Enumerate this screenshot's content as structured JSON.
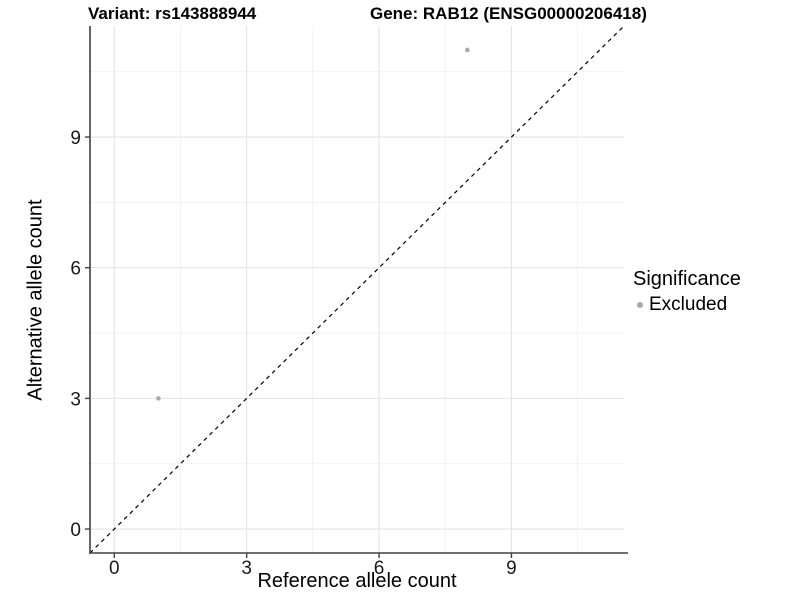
{
  "window": {
    "background": "#ffffff"
  },
  "header": {
    "variant_title": "Variant: rs143888944",
    "gene_title": "Gene: RAB12 (ENSG00000206418)"
  },
  "legend": {
    "title": "Significance",
    "items": [
      {
        "label": "Excluded",
        "color": "#aaaaaa"
      }
    ]
  },
  "chart_data": {
    "type": "scatter",
    "title_left": "Variant: rs143888944",
    "title_right": "Gene: RAB12 (ENSG00000206418)",
    "xlabel": "Reference allele count",
    "ylabel": "Alternative allele count",
    "xlim": [
      -0.55,
      11.55
    ],
    "ylim": [
      -0.55,
      11.55
    ],
    "x_major_ticks": [
      0,
      3,
      6,
      9
    ],
    "y_major_ticks": [
      0,
      3,
      6,
      9
    ],
    "x_minor_ticks": [
      1.5,
      4.5,
      7.5,
      10.5
    ],
    "y_minor_ticks": [
      1.5,
      4.5,
      7.5,
      10.5
    ],
    "grid": true,
    "legend_position": "right",
    "series": [
      {
        "name": "Excluded",
        "color": "#aaaaaa",
        "point_radius": 2.3,
        "points": [
          {
            "x": 1,
            "y": 3
          },
          {
            "x": 8,
            "y": 11
          }
        ]
      }
    ],
    "reference_line": {
      "kind": "identity",
      "from": -0.55,
      "to": 11.55,
      "style": "dashed",
      "color": "#000000"
    }
  },
  "colors": {
    "grid_major": "#e4e4e4",
    "grid_minor": "#efefef",
    "axis": "#404040",
    "tick_text": "#1a1a1a",
    "point": "#aaaaaa"
  }
}
